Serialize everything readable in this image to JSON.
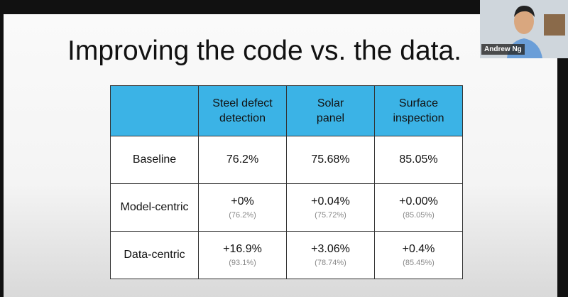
{
  "slide": {
    "title": "Improving the code vs. the data.",
    "table": {
      "header": [
        "Steel defect\ndetection",
        "Solar\npanel",
        "Surface\ninspection"
      ],
      "rows": [
        {
          "label": "Baseline",
          "cells": [
            {
              "value": "76.2%"
            },
            {
              "value": "75.68%"
            },
            {
              "value": "85.05%"
            }
          ]
        },
        {
          "label": "Model-centric",
          "cells": [
            {
              "value": "+0%",
              "sub": "(76.2%)"
            },
            {
              "value": "+0.04%",
              "sub": "(75.72%)"
            },
            {
              "value": "+0.00%",
              "sub": "(85.05%)"
            }
          ]
        },
        {
          "label": "Data-centric",
          "cells": [
            {
              "value": "+16.9%",
              "sub": "(93.1%)"
            },
            {
              "value": "+3.06%",
              "sub": "(78.74%)"
            },
            {
              "value": "+0.4%",
              "sub": "(85.45%)"
            }
          ]
        }
      ]
    }
  },
  "webcam": {
    "name": "Andrew Ng"
  }
}
